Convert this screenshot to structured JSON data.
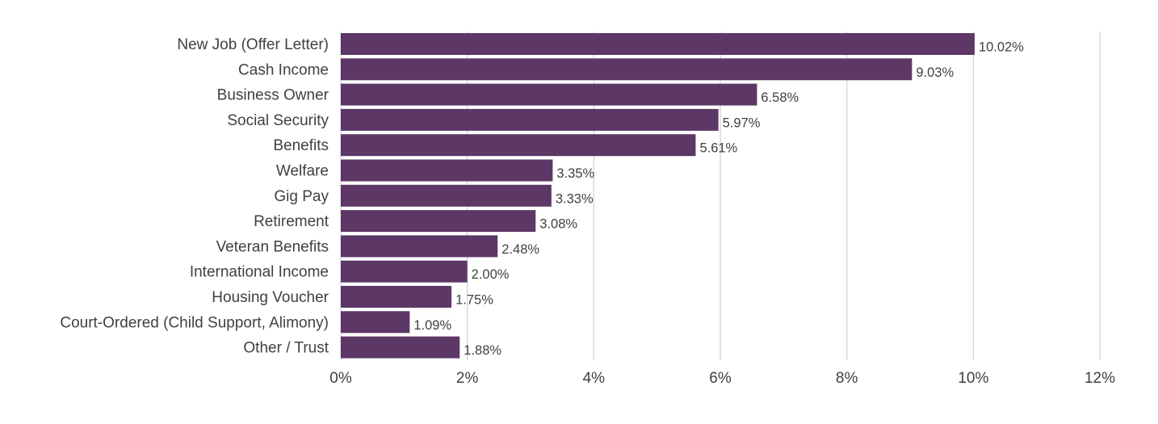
{
  "chart_data": {
    "type": "bar",
    "orientation": "horizontal",
    "title": "",
    "xlabel": "",
    "ylabel": "",
    "categories": [
      "New Job (Offer Letter)",
      "Cash Income",
      "Business Owner",
      "Social Security",
      "Benefits",
      "Welfare",
      "Gig Pay",
      "Retirement",
      "Veteran Benefits",
      "International Income",
      "Housing Voucher",
      "Court-Ordered (Child Support, Alimony)",
      "Other / Trust"
    ],
    "values": [
      10.02,
      9.03,
      6.58,
      5.97,
      5.61,
      3.35,
      3.33,
      3.08,
      2.48,
      2.0,
      1.75,
      1.09,
      1.88
    ],
    "value_labels": [
      "10.02%",
      "9.03%",
      "6.58%",
      "5.97%",
      "5.61%",
      "3.35%",
      "3.33%",
      "3.08%",
      "2.48%",
      "2.00%",
      "1.75%",
      "1.09%",
      "1.88%"
    ],
    "xlim": [
      0,
      12
    ],
    "x_ticks": [
      0,
      2,
      4,
      6,
      8,
      10,
      12
    ],
    "x_tick_labels": [
      "0%",
      "2%",
      "4%",
      "6%",
      "8%",
      "10%",
      "12%"
    ],
    "grid": "vertical",
    "legend": "none",
    "bar_color": "#5d3766"
  }
}
